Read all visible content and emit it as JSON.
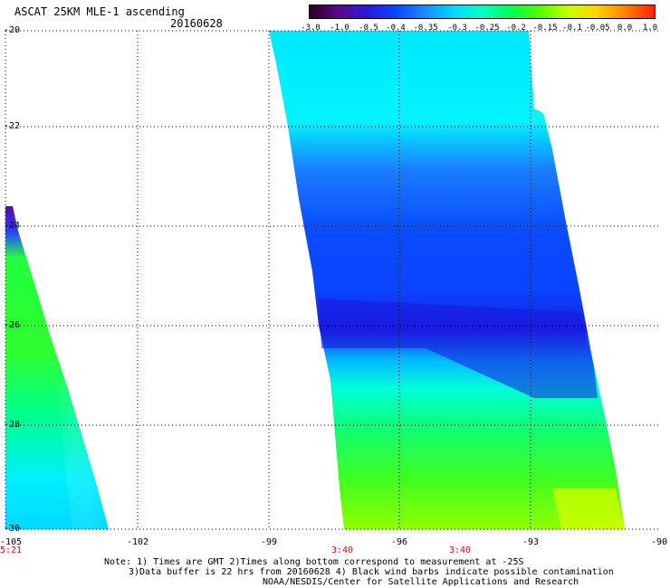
{
  "title": "ASCAT 25KM MLE-1 ascending",
  "date": "20160628",
  "colorbar": {
    "labels": [
      "-3.0",
      "-1.0",
      "-0.5",
      "-0.4",
      "-0.35",
      "-0.3",
      "-0.25",
      "-0.2",
      "-0.15",
      "-0.1",
      "-0.05",
      "0.0",
      "1.0"
    ],
    "colors": [
      "#2a0020",
      "#5a0a8a",
      "#2a1ad8",
      "#0a45ff",
      "#1a8cff",
      "#00d8ff",
      "#00ffc8",
      "#00ff50",
      "#50ff00",
      "#c8ff00",
      "#ffd200",
      "#ff8000",
      "#ff2000"
    ]
  },
  "axes": {
    "lat_labels": [
      "-20",
      "-22",
      "-24",
      "-26",
      "-28",
      "-30"
    ],
    "lon_labels": [
      "-105",
      "-102",
      "-99",
      "-96",
      "-93",
      "-90"
    ]
  },
  "swath_times": [
    "5:21",
    "3:40",
    "3:40"
  ],
  "notes": [
    "Note: 1) Times are GMT 2)Times along bottom correspond to measurement at -25S",
    "3)Data buffer is 22 hrs from 20160628 4) Black wind barbs indicate possible contamination",
    "NOAA/NESDIS/Center for Satellite Applications and Research"
  ]
}
